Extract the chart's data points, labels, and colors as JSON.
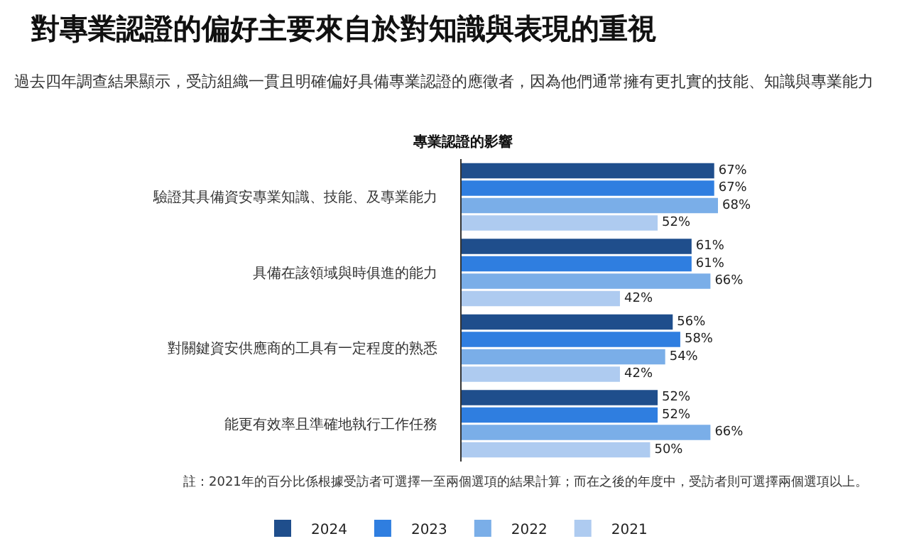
{
  "chart_data": {
    "type": "bar",
    "orientation": "horizontal",
    "title": "對專業認證的偏好主要來自於對知識與表現的重視",
    "subtitle": "過去四年調查結果顯示，受訪組織一貫且明確偏好具備專業認證的應徵者，因為他們通常擁有更扎實的技能、知識與專業能力",
    "annotations": [
      "專業認證的影響",
      "註：2021年的百分比係根據受訪者可選擇一至兩個選項的結果計算；而在之後的年度中，受訪者則可選擇兩個選項以上。"
    ],
    "categories": [
      "驗證其具備資安專業知識、技能、及專業能力",
      "具備在該領域與時俱進的能力",
      "對關鍵資安供應商的工具有一定程度的熟悉",
      "能更有效率且準確地執行工作任務"
    ],
    "tick_labels": "y",
    "legend": "bottom",
    "series": [
      {
        "name": "2024",
        "color": "#1f4e8c",
        "values": [
          67,
          61,
          56,
          52
        ],
        "value_labels": [
          "67%",
          "61%",
          "56%",
          "52%"
        ]
      },
      {
        "name": "2023",
        "color": "#2f7ee0",
        "values": [
          67,
          61,
          58,
          52
        ],
        "value_labels": [
          "67%",
          "61%",
          "58%",
          "52%"
        ]
      },
      {
        "name": "2022",
        "color": "#7aaee8",
        "values": [
          68,
          66,
          54,
          66
        ],
        "value_labels": [
          "68%",
          "66%",
          "54%",
          "66%"
        ]
      },
      {
        "name": "2021",
        "color": "#aecbf0",
        "values": [
          52,
          42,
          42,
          50
        ],
        "value_labels": [
          "52%",
          "42%",
          "42%",
          "50%"
        ]
      }
    ]
  }
}
